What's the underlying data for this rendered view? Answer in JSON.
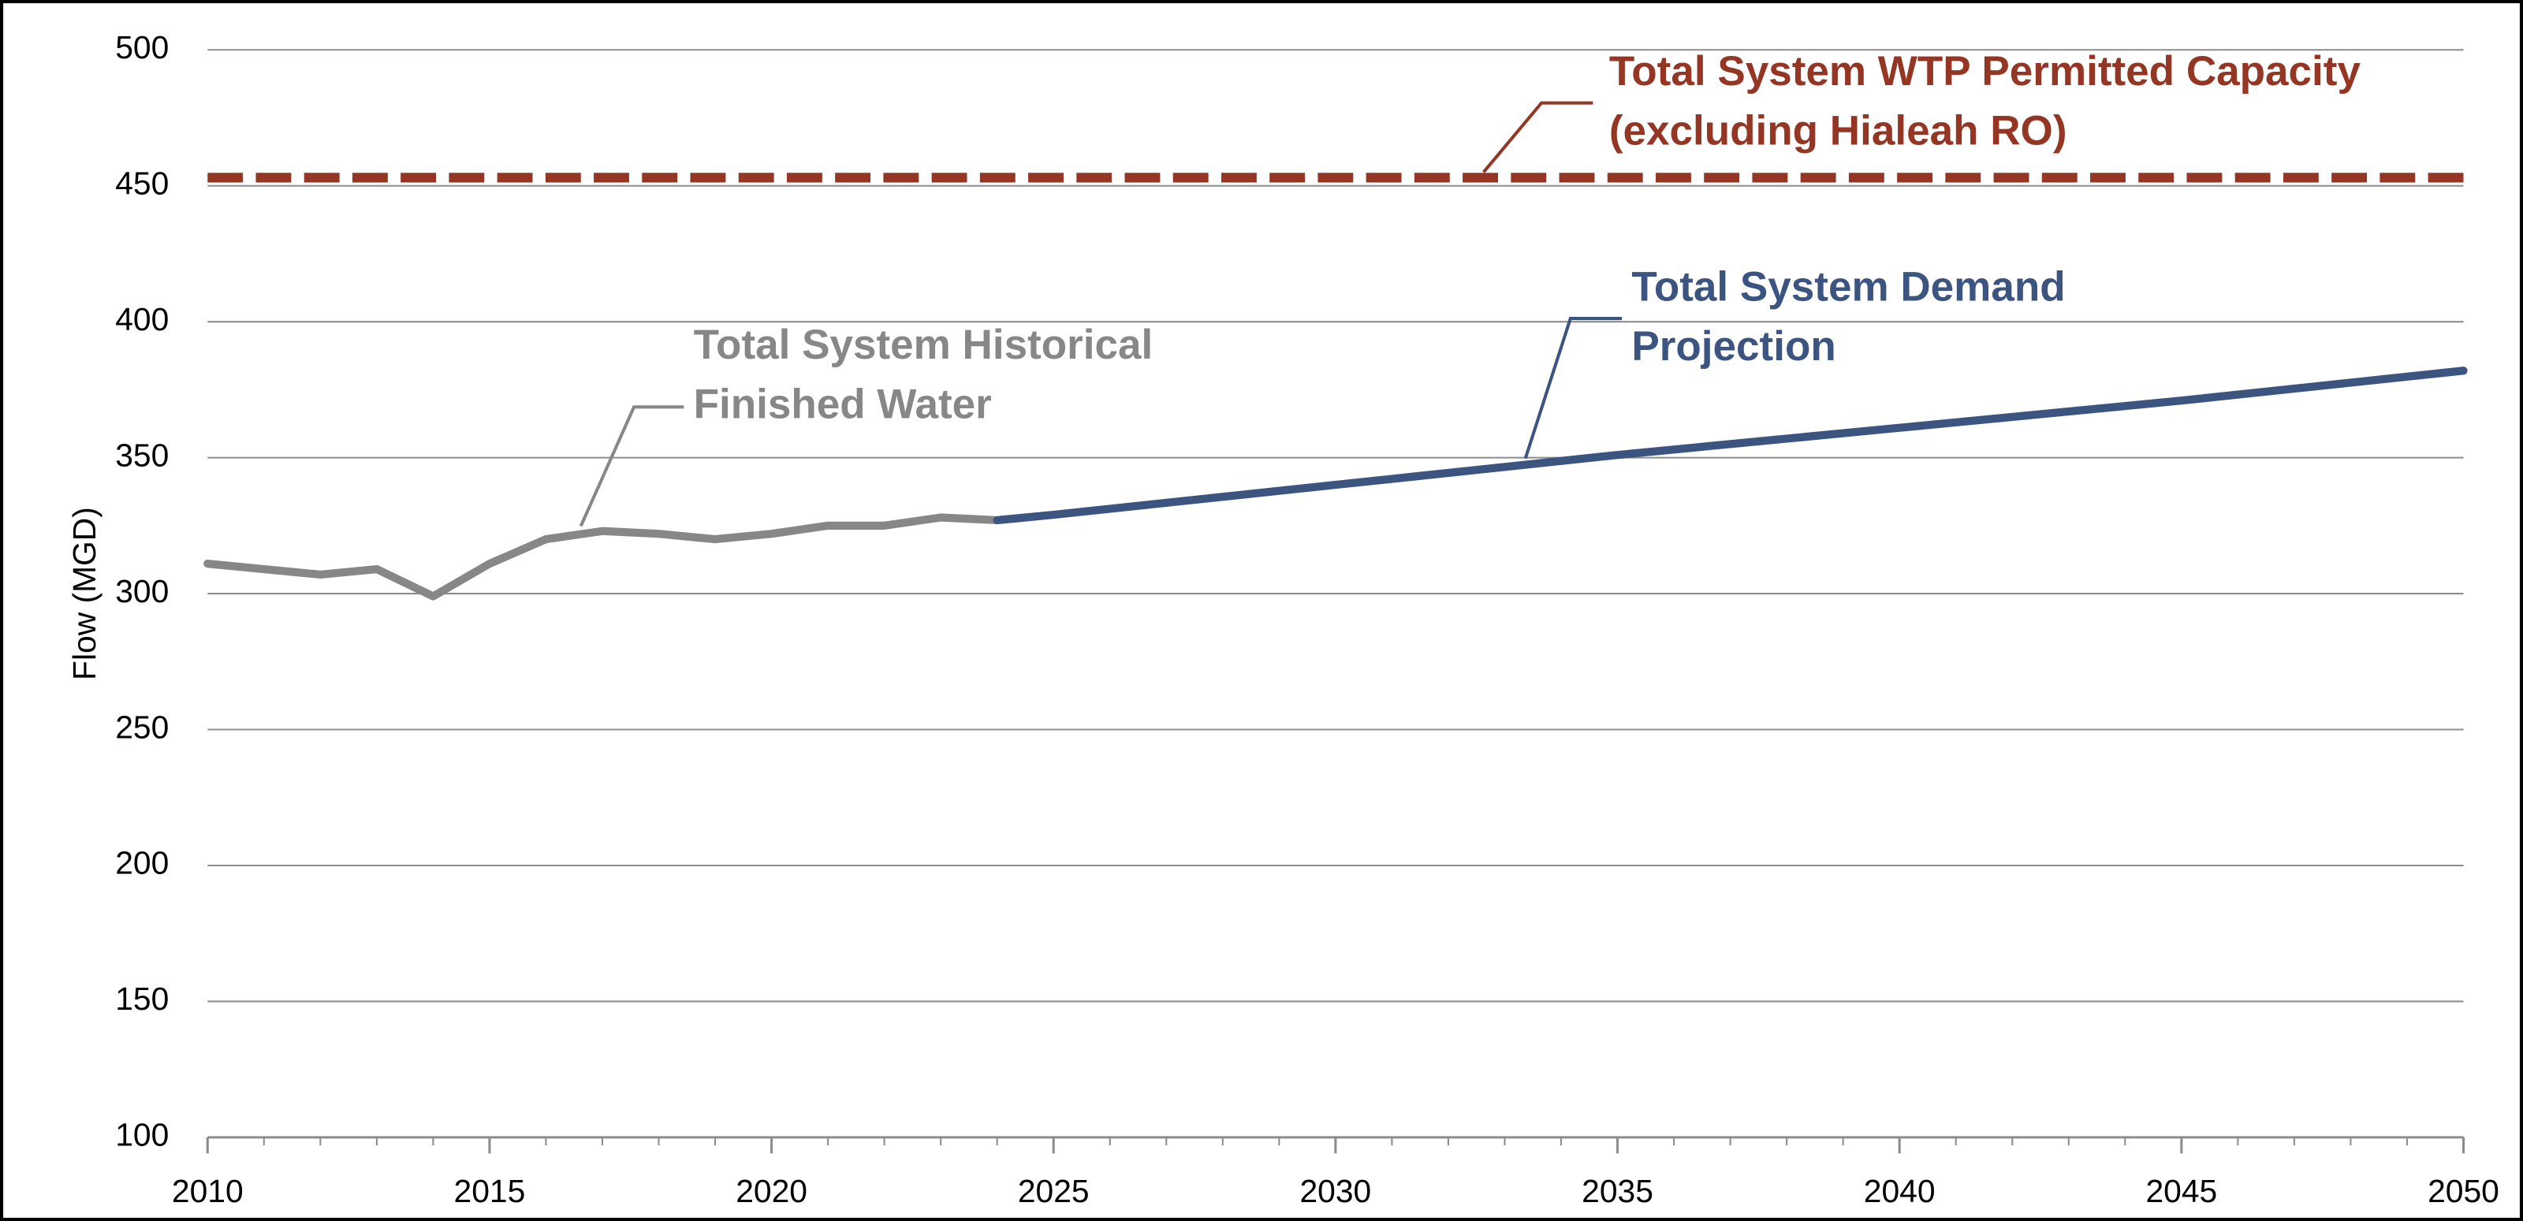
{
  "chart_data": {
    "type": "line",
    "ylabel": "Flow (MGD)",
    "xlim": [
      2010,
      2050
    ],
    "ylim": [
      100,
      500
    ],
    "xticks": [
      2010,
      2015,
      2020,
      2025,
      2030,
      2035,
      2040,
      2045,
      2050
    ],
    "xminorticks": [
      2011,
      2012,
      2013,
      2014,
      2016,
      2017,
      2018,
      2019,
      2021,
      2022,
      2023,
      2024,
      2026,
      2027,
      2028,
      2029,
      2031,
      2032,
      2033,
      2034,
      2036,
      2037,
      2038,
      2039,
      2041,
      2042,
      2043,
      2044,
      2046,
      2047,
      2048,
      2049
    ],
    "yticks": [
      100,
      150,
      200,
      250,
      300,
      350,
      400,
      450,
      500
    ],
    "grid": true,
    "series": [
      {
        "color": "#878787",
        "dashed": false,
        "x": [
          2010,
          2011,
          2012,
          2013,
          2014,
          2015,
          2016,
          2017,
          2018,
          2019,
          2020,
          2021,
          2022,
          2023,
          2024
        ],
        "values": [
          311,
          309,
          307,
          309,
          299,
          311,
          320,
          323,
          322,
          320,
          322,
          325,
          325,
          328,
          327
        ]
      },
      {
        "color": "#3b5480",
        "dashed": false,
        "x": [
          2024,
          2025,
          2030,
          2035,
          2040,
          2045,
          2050
        ],
        "values": [
          327,
          329,
          340,
          351,
          361,
          371,
          382
        ]
      },
      {
        "color": "#943623",
        "dashed": true,
        "x": [
          2010,
          2050
        ],
        "values": [
          453,
          453
        ]
      }
    ],
    "annotations": [
      {
        "color": "#878787",
        "lines": [
          "Total System Historical",
          "Finished Water"
        ]
      },
      {
        "color": "#3b5480",
        "lines": [
          "Total System Demand",
          "Projection"
        ]
      },
      {
        "color": "#943623",
        "lines": [
          "Total System WTP Permitted Capacity",
          "(excluding Hialeah RO)"
        ]
      }
    ]
  }
}
